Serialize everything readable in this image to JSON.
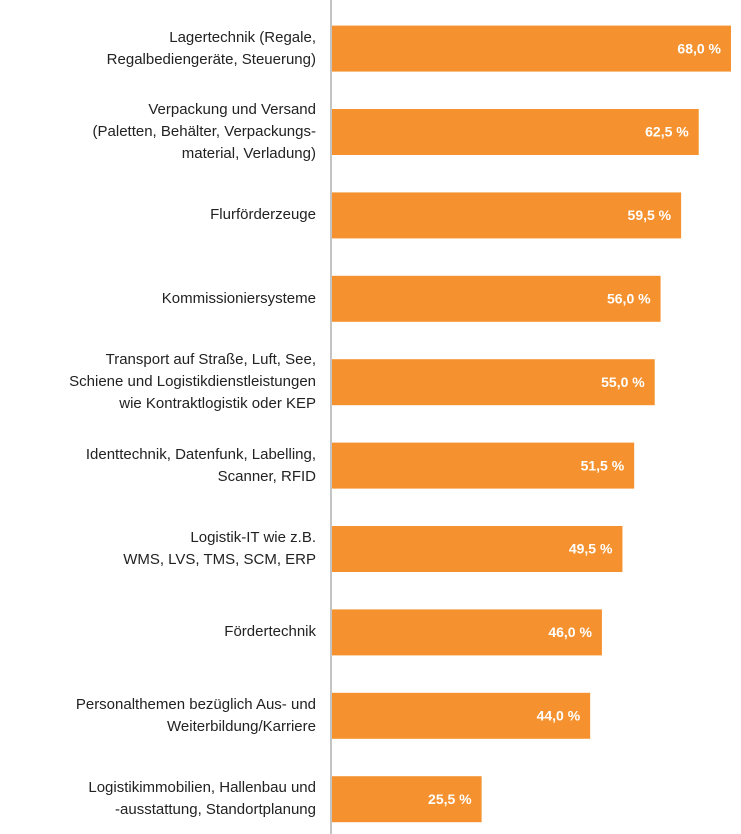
{
  "chart_data": {
    "type": "hbar",
    "color": "#f5922f",
    "categories": [
      "Lagertechnik (Regale,\nRegalbediengeräte, Steuerung)",
      "Verpackung und Versand\n(Paletten, Behälter, Verpackungs-\nmaterial, Verladung)",
      "Flurförderzeuge",
      "Kommissioniersysteme",
      "Transport auf Straße, Luft, See,\nSchiene und Logistikdienstleistungen\nwie Kontraktlogistik oder KEP",
      "Identtechnik, Datenfunk, Labelling,\nScanner, RFID",
      "Logistik-IT wie z.B.\nWMS, LVS, TMS, SCM, ERP",
      "Fördertechnik",
      "Personalthemen bezüglich Aus- und\nWeiterbildung/Karriere",
      "Logistikimmobilien, Hallenbau und\n-ausstattung, Standortplanung"
    ],
    "values": [
      68.0,
      62.5,
      59.5,
      56.0,
      55.0,
      51.5,
      49.5,
      46.0,
      44.0,
      25.5
    ],
    "value_labels": [
      "68,0 %",
      "62,5 %",
      "59,5 %",
      "56,0 %",
      "55,0 %",
      "51,5 %",
      "49,5 %",
      "46,0 %",
      "44,0 %",
      "25,5 %"
    ]
  }
}
